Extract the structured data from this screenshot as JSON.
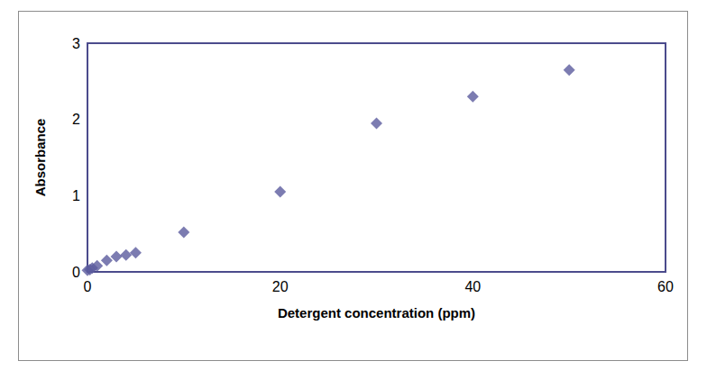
{
  "chart_data": {
    "type": "scatter",
    "x_label": "Detergent concentration (ppm)",
    "y_label": "Absorbance",
    "x": [
      0,
      0.25,
      0.5,
      1,
      2,
      3,
      4,
      5,
      10,
      20,
      30,
      40,
      50
    ],
    "values": [
      0.02,
      0.03,
      0.05,
      0.08,
      0.15,
      0.2,
      0.22,
      0.25,
      0.52,
      1.05,
      1.95,
      2.3,
      2.65
    ],
    "color": "#5b5b9e",
    "marker": "diamond",
    "xlim": [
      0,
      60
    ],
    "xticks": [
      0,
      20,
      40,
      60
    ],
    "ylim": [
      0,
      3
    ],
    "yticks": [
      0,
      1,
      2,
      3
    ],
    "grid": false
  }
}
